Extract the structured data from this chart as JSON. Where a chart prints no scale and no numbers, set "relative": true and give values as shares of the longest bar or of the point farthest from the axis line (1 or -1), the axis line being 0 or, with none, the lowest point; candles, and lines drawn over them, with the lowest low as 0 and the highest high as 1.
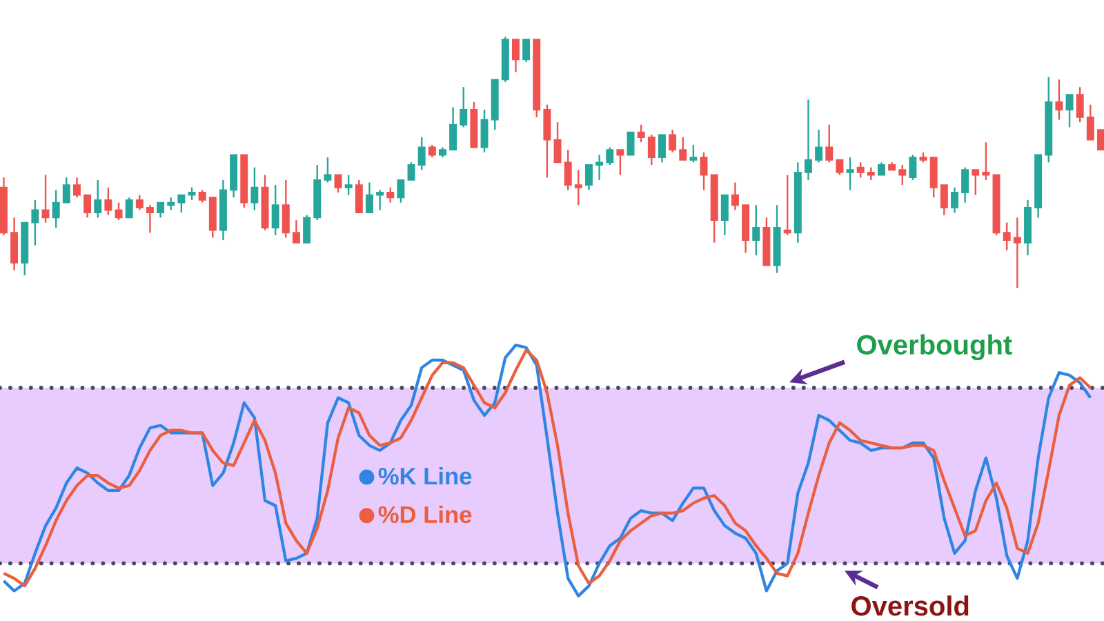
{
  "chart_data": [
    {
      "type": "candlestick",
      "relative": true,
      "tick_labels": false,
      "categories": [
        null,
        null,
        null,
        null,
        null,
        null,
        null,
        null,
        null,
        null,
        null,
        null,
        null,
        null,
        null,
        null,
        null,
        null,
        null,
        null,
        null,
        null,
        null,
        null,
        null,
        null,
        null,
        null,
        null,
        null,
        null,
        null,
        null,
        null,
        null,
        null,
        null,
        null,
        null,
        null,
        null,
        null,
        null,
        null,
        null,
        null,
        null,
        null,
        null,
        null,
        null,
        null,
        null,
        null,
        null,
        null,
        null,
        null,
        null,
        null,
        null,
        null,
        null,
        null,
        null,
        null,
        null,
        null,
        null,
        null,
        null,
        null,
        null,
        null,
        null,
        null,
        null,
        null,
        null,
        null,
        null,
        null,
        null,
        null,
        null,
        null,
        null,
        null,
        null,
        null,
        null,
        null,
        null,
        null,
        null,
        null,
        null,
        null,
        null,
        null,
        null,
        null,
        null,
        null,
        null,
        null
      ],
      "ohlc": [
        [
          0.4,
          0.44,
          0.21,
          0.22
        ],
        [
          0.22,
          0.28,
          0.07,
          0.1
        ],
        [
          0.1,
          0.26,
          0.05,
          0.26
        ],
        [
          0.26,
          0.35,
          0.17,
          0.31
        ],
        [
          0.31,
          0.45,
          0.26,
          0.28
        ],
        [
          0.28,
          0.39,
          0.24,
          0.34
        ],
        [
          0.34,
          0.44,
          0.34,
          0.41
        ],
        [
          0.41,
          0.44,
          0.36,
          0.37
        ],
        [
          0.37,
          0.37,
          0.28,
          0.3
        ],
        [
          0.3,
          0.43,
          0.28,
          0.35
        ],
        [
          0.35,
          0.4,
          0.29,
          0.31
        ],
        [
          0.31,
          0.34,
          0.27,
          0.28
        ],
        [
          0.28,
          0.36,
          0.28,
          0.35
        ],
        [
          0.35,
          0.37,
          0.31,
          0.32
        ],
        [
          0.32,
          0.33,
          0.22,
          0.3
        ],
        [
          0.3,
          0.34,
          0.28,
          0.34
        ],
        [
          0.33,
          0.36,
          0.31,
          0.34
        ],
        [
          0.34,
          0.37,
          0.3,
          0.37
        ],
        [
          0.37,
          0.4,
          0.35,
          0.38
        ],
        [
          0.38,
          0.39,
          0.34,
          0.35
        ],
        [
          0.36,
          0.36,
          0.2,
          0.23
        ],
        [
          0.23,
          0.43,
          0.19,
          0.39
        ],
        [
          0.39,
          0.53,
          0.36,
          0.53
        ],
        [
          0.53,
          0.53,
          0.32,
          0.34
        ],
        [
          0.34,
          0.48,
          0.31,
          0.4
        ],
        [
          0.4,
          0.45,
          0.23,
          0.24
        ],
        [
          0.24,
          0.41,
          0.21,
          0.33
        ],
        [
          0.33,
          0.43,
          0.2,
          0.22
        ],
        [
          0.22,
          0.27,
          0.18,
          0.18
        ],
        [
          0.18,
          0.29,
          0.18,
          0.28
        ],
        [
          0.28,
          0.49,
          0.27,
          0.43
        ],
        [
          0.43,
          0.52,
          0.42,
          0.45
        ],
        [
          0.45,
          0.45,
          0.38,
          0.4
        ],
        [
          0.4,
          0.45,
          0.37,
          0.41
        ],
        [
          0.41,
          0.43,
          0.3,
          0.3
        ],
        [
          0.3,
          0.42,
          0.3,
          0.37
        ],
        [
          0.37,
          0.39,
          0.31,
          0.38
        ],
        [
          0.38,
          0.4,
          0.34,
          0.36
        ],
        [
          0.36,
          0.43,
          0.34,
          0.43
        ],
        [
          0.43,
          0.5,
          0.43,
          0.49
        ],
        [
          0.49,
          0.6,
          0.47,
          0.56
        ],
        [
          0.56,
          0.57,
          0.52,
          0.53
        ],
        [
          0.53,
          0.56,
          0.52,
          0.55
        ],
        [
          0.55,
          0.72,
          0.55,
          0.65
        ],
        [
          0.65,
          0.8,
          0.64,
          0.71
        ],
        [
          0.71,
          0.74,
          0.56,
          0.56
        ],
        [
          0.56,
          0.71,
          0.54,
          0.67
        ],
        [
          0.67,
          0.83,
          0.63,
          0.83
        ],
        [
          0.83,
          1.0,
          0.82,
          0.99
        ],
        [
          0.99,
          0.99,
          0.86,
          0.91
        ],
        [
          0.91,
          0.99,
          0.9,
          0.99
        ],
        [
          0.99,
          0.99,
          0.68,
          0.71
        ],
        [
          0.71,
          0.73,
          0.44,
          0.59
        ],
        [
          0.59,
          0.66,
          0.5,
          0.5
        ],
        [
          0.5,
          0.55,
          0.39,
          0.41
        ],
        [
          0.41,
          0.47,
          0.33,
          0.4
        ],
        [
          0.41,
          0.49,
          0.39,
          0.49
        ],
        [
          0.49,
          0.53,
          0.43,
          0.5
        ],
        [
          0.5,
          0.56,
          0.49,
          0.55
        ],
        [
          0.55,
          0.55,
          0.45,
          0.53
        ],
        [
          0.53,
          0.62,
          0.53,
          0.62
        ],
        [
          0.62,
          0.65,
          0.58,
          0.6
        ],
        [
          0.6,
          0.61,
          0.49,
          0.52
        ],
        [
          0.52,
          0.61,
          0.5,
          0.61
        ],
        [
          0.61,
          0.63,
          0.54,
          0.55
        ],
        [
          0.55,
          0.6,
          0.51,
          0.51
        ],
        [
          0.51,
          0.57,
          0.5,
          0.52
        ],
        [
          0.52,
          0.54,
          0.39,
          0.45
        ],
        [
          0.45,
          0.45,
          0.18,
          0.27
        ],
        [
          0.27,
          0.37,
          0.21,
          0.37
        ],
        [
          0.37,
          0.42,
          0.31,
          0.33
        ],
        [
          0.33,
          0.33,
          0.14,
          0.19
        ],
        [
          0.19,
          0.33,
          0.13,
          0.24
        ],
        [
          0.24,
          0.28,
          0.09,
          0.09
        ],
        [
          0.09,
          0.33,
          0.06,
          0.24
        ],
        [
          0.23,
          0.45,
          0.21,
          0.22
        ],
        [
          0.22,
          0.5,
          0.18,
          0.46
        ],
        [
          0.46,
          0.75,
          0.43,
          0.51
        ],
        [
          0.51,
          0.63,
          0.5,
          0.56
        ],
        [
          0.56,
          0.65,
          0.5,
          0.51
        ],
        [
          0.51,
          0.51,
          0.45,
          0.46
        ],
        [
          0.46,
          0.52,
          0.39,
          0.47
        ],
        [
          0.48,
          0.5,
          0.44,
          0.46
        ],
        [
          0.46,
          0.48,
          0.43,
          0.45
        ],
        [
          0.45,
          0.5,
          0.45,
          0.49
        ],
        [
          0.49,
          0.5,
          0.47,
          0.47
        ],
        [
          0.47,
          0.49,
          0.41,
          0.45
        ],
        [
          0.44,
          0.53,
          0.43,
          0.52
        ],
        [
          0.52,
          0.54,
          0.5,
          0.51
        ],
        [
          0.52,
          0.52,
          0.36,
          0.4
        ],
        [
          0.41,
          0.41,
          0.29,
          0.32
        ],
        [
          0.32,
          0.4,
          0.3,
          0.38
        ],
        [
          0.38,
          0.48,
          0.34,
          0.47
        ],
        [
          0.47,
          0.47,
          0.37,
          0.45
        ],
        [
          0.46,
          0.58,
          0.43,
          0.45
        ],
        [
          0.45,
          0.45,
          0.21,
          0.22
        ],
        [
          0.22,
          0.26,
          0.15,
          0.19
        ],
        [
          0.2,
          0.28,
          0.0,
          0.18
        ],
        [
          0.18,
          0.35,
          0.13,
          0.32
        ],
        [
          0.32,
          0.53,
          0.28,
          0.53
        ],
        [
          0.53,
          0.84,
          0.5,
          0.74
        ],
        [
          0.74,
          0.83,
          0.67,
          0.71
        ],
        [
          0.71,
          0.77,
          0.64,
          0.77
        ],
        [
          0.77,
          0.8,
          0.66,
          0.68
        ],
        [
          0.68,
          0.73,
          0.59,
          0.59
        ],
        [
          0.63,
          0.63,
          0.55,
          0.55
        ]
      ],
      "colors": [
        "#ef5350",
        "#ef5350",
        "#26a69a",
        "#26a69a",
        "#ef5350",
        "#26a69a",
        "#26a69a",
        "#ef5350",
        "#ef5350",
        "#26a69a",
        "#ef5350",
        "#ef5350",
        "#26a69a",
        "#ef5350",
        "#ef5350",
        "#26a69a",
        "#26a69a",
        "#26a69a",
        "#26a69a",
        "#ef5350",
        "#ef5350",
        "#26a69a",
        "#26a69a",
        "#ef5350",
        "#26a69a",
        "#ef5350",
        "#26a69a",
        "#ef5350",
        "#ef5350",
        "#26a69a",
        "#26a69a",
        "#26a69a",
        "#ef5350",
        "#26a69a",
        "#ef5350",
        "#26a69a",
        "#26a69a",
        "#ef5350",
        "#26a69a",
        "#26a69a",
        "#26a69a",
        "#ef5350",
        "#26a69a",
        "#26a69a",
        "#26a69a",
        "#ef5350",
        "#26a69a",
        "#26a69a",
        "#26a69a",
        "#ef5350",
        "#26a69a",
        "#ef5350",
        "#ef5350",
        "#ef5350",
        "#ef5350",
        "#ef5350",
        "#26a69a",
        "#26a69a",
        "#26a69a",
        "#ef5350",
        "#26a69a",
        "#ef5350",
        "#ef5350",
        "#26a69a",
        "#ef5350",
        "#ef5350",
        "#26a69a",
        "#ef5350",
        "#ef5350",
        "#26a69a",
        "#ef5350",
        "#ef5350",
        "#26a69a",
        "#ef5350",
        "#26a69a",
        "#ef5350",
        "#26a69a",
        "#26a69a",
        "#26a69a",
        "#ef5350",
        "#ef5350",
        "#26a69a",
        "#ef5350",
        "#ef5350",
        "#26a69a",
        "#ef5350",
        "#ef5350",
        "#26a69a",
        "#ef5350",
        "#ef5350",
        "#ef5350",
        "#26a69a",
        "#26a69a",
        "#ef5350",
        "#ef5350",
        "#ef5350",
        "#ef5350",
        "#ef5350",
        "#26a69a",
        "#26a69a",
        "#26a69a",
        "#ef5350",
        "#26a69a",
        "#ef5350",
        "#ef5350",
        "#ef5350"
      ]
    },
    {
      "type": "line",
      "relative": true,
      "tick_labels": false,
      "legend": "left",
      "categories": [
        null,
        null,
        null,
        null,
        null,
        null,
        null,
        null,
        null,
        null,
        null,
        null,
        null,
        null,
        null,
        null,
        null,
        null,
        null,
        null,
        null,
        null,
        null,
        null,
        null,
        null,
        null,
        null,
        null,
        null,
        null,
        null,
        null,
        null,
        null,
        null,
        null,
        null,
        null,
        null,
        null,
        null,
        null,
        null,
        null,
        null,
        null,
        null,
        null,
        null,
        null,
        null,
        null,
        null,
        null,
        null,
        null,
        null,
        null,
        null,
        null,
        null,
        null,
        null,
        null,
        null,
        null,
        null,
        null,
        null,
        null,
        null,
        null,
        null,
        null,
        null,
        null,
        null,
        null,
        null,
        null,
        null,
        null,
        null,
        null,
        null,
        null,
        null,
        null,
        null,
        null,
        null,
        null,
        null,
        null,
        null,
        null,
        null,
        null,
        null,
        null,
        null,
        null,
        null,
        null
      ],
      "series": [
        {
          "name": "%K Line",
          "color": "#3085e3",
          "values": [
            0.06,
            0.02,
            0.05,
            0.17,
            0.28,
            0.35,
            0.45,
            0.51,
            0.49,
            0.45,
            0.42,
            0.42,
            0.48,
            0.59,
            0.67,
            0.68,
            0.65,
            0.65,
            0.65,
            0.65,
            0.44,
            0.49,
            0.61,
            0.77,
            0.71,
            0.38,
            0.36,
            0.14,
            0.15,
            0.17,
            0.31,
            0.69,
            0.79,
            0.77,
            0.64,
            0.6,
            0.58,
            0.61,
            0.7,
            0.76,
            0.91,
            0.94,
            0.94,
            0.92,
            0.9,
            0.78,
            0.72,
            0.77,
            0.95,
            1.0,
            0.99,
            0.92,
            0.63,
            0.33,
            0.07,
            0.0,
            0.04,
            0.13,
            0.2,
            0.23,
            0.31,
            0.34,
            0.33,
            0.33,
            0.3,
            0.37,
            0.43,
            0.43,
            0.34,
            0.28,
            0.25,
            0.23,
            0.17,
            0.02,
            0.1,
            0.13,
            0.41,
            0.53,
            0.72,
            0.7,
            0.66,
            0.62,
            0.61,
            0.58,
            0.59,
            0.59,
            0.59,
            0.61,
            0.61,
            0.55,
            0.31,
            0.17,
            0.22,
            0.42,
            0.55,
            0.39,
            0.16,
            0.07,
            0.22,
            0.55,
            0.79,
            0.89,
            0.88,
            0.85,
            0.79
          ]
        },
        {
          "name": "%D Line",
          "color": "#ea5f3f",
          "values": [
            0.09,
            0.07,
            0.04,
            0.11,
            0.2,
            0.3,
            0.38,
            0.44,
            0.48,
            0.48,
            0.45,
            0.43,
            0.44,
            0.5,
            0.58,
            0.64,
            0.66,
            0.66,
            0.65,
            0.65,
            0.58,
            0.53,
            0.52,
            0.61,
            0.7,
            0.62,
            0.49,
            0.29,
            0.22,
            0.17,
            0.27,
            0.42,
            0.63,
            0.75,
            0.73,
            0.64,
            0.6,
            0.61,
            0.63,
            0.7,
            0.79,
            0.88,
            0.93,
            0.93,
            0.91,
            0.84,
            0.77,
            0.75,
            0.81,
            0.9,
            0.98,
            0.94,
            0.81,
            0.6,
            0.33,
            0.12,
            0.05,
            0.08,
            0.14,
            0.22,
            0.26,
            0.29,
            0.32,
            0.33,
            0.33,
            0.34,
            0.37,
            0.39,
            0.4,
            0.36,
            0.29,
            0.26,
            0.2,
            0.15,
            0.09,
            0.08,
            0.17,
            0.33,
            0.48,
            0.61,
            0.69,
            0.66,
            0.62,
            0.61,
            0.6,
            0.59,
            0.59,
            0.6,
            0.6,
            0.58,
            0.46,
            0.35,
            0.24,
            0.26,
            0.38,
            0.45,
            0.35,
            0.19,
            0.17,
            0.29,
            0.5,
            0.72,
            0.84,
            0.87,
            0.83
          ]
        }
      ],
      "bands": [
        {
          "axis": "y",
          "from": 0.13,
          "to": 0.83,
          "color": "#e8ccfd"
        }
      ],
      "ref_lines": [
        {
          "axis": "y",
          "value": 0.83,
          "label": "Overbought",
          "color": "#4a4a5c",
          "line_style": "dotted"
        },
        {
          "axis": "y",
          "value": 0.13,
          "label": "Oversold",
          "color": "#4a4a5c",
          "line_style": "dotted"
        }
      ]
    }
  ]
}
